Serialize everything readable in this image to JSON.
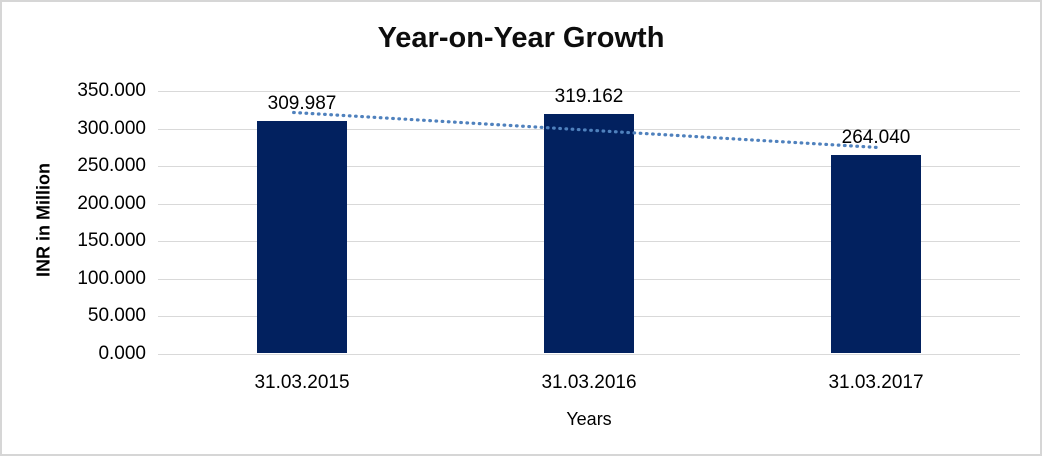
{
  "chart_data": {
    "type": "bar",
    "title": "Year-on-Year Growth",
    "xlabel": "Years",
    "ylabel": "INR in Million",
    "categories": [
      "31.03.2015",
      "31.03.2016",
      "31.03.2017"
    ],
    "values": [
      309.987,
      319.162,
      264.04
    ],
    "data_labels": [
      "309.987",
      "319.162",
      "264.040"
    ],
    "ylim": [
      0,
      350
    ],
    "ytick_step": 50,
    "ytick_labels_top_to_bottom": [
      "350.000",
      "300.000",
      "250.000",
      "200.000",
      "150.000",
      "100.000",
      "50.000",
      "0.000"
    ],
    "grid": true,
    "legend": "none",
    "bar_color": "#02215f",
    "gridline_color": "#d9d9d9",
    "axis_line_color": "#d9d9d9",
    "text_color": "#000000",
    "title_color": "#0d0d0d",
    "trendline": {
      "type": "linear",
      "style": "dotted",
      "color": "#4f81bd"
    }
  }
}
